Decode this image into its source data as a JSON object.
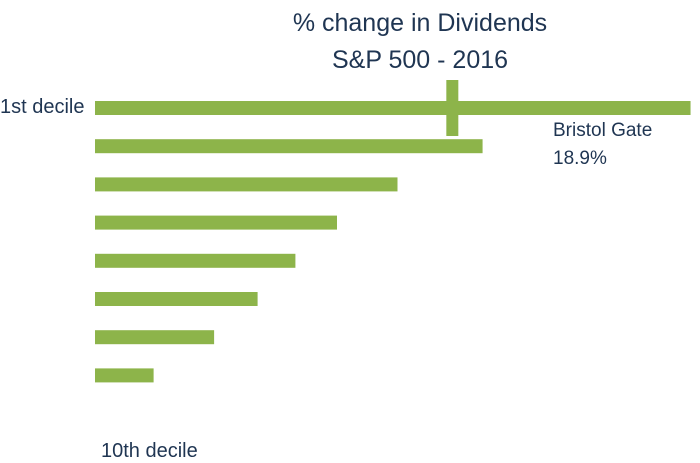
{
  "chart_data": {
    "type": "bar",
    "orientation": "horizontal",
    "title": "% change in Dividends",
    "subtitle": "S&P 500 - 2016",
    "categories": [
      "1st decile",
      "",
      "",
      "",
      "",
      "",
      "",
      "",
      "",
      "10th decile"
    ],
    "values": [
      31.5,
      20.5,
      16.0,
      12.8,
      10.6,
      8.6,
      6.3,
      3.1,
      0.0,
      0.1
    ],
    "xlim": [
      0,
      32
    ],
    "grid": false,
    "legend": "none",
    "bar_color": "#8db44a",
    "marker": {
      "label": "Bristol Gate",
      "value": 18.9,
      "value_label": "18.9%",
      "color": "#8db44a"
    }
  }
}
